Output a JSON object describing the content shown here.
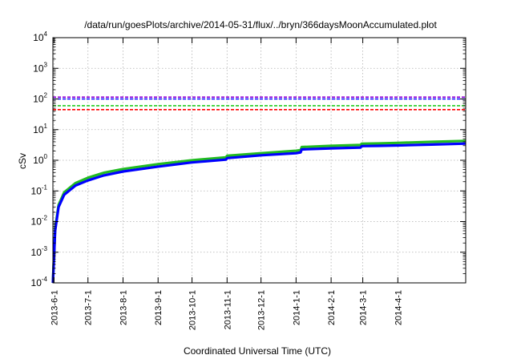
{
  "chart_data": {
    "type": "line",
    "title": "/data/run/goesPlots/archive/2014-05-31/flux/../bryn/366daysMoonAccumulated.plot",
    "xlabel": "Coordinated Universal Time (UTC)",
    "ylabel": "cSv",
    "yscale": "log",
    "ylim": [
      0.0001,
      10000
    ],
    "yticks": [
      {
        "base": "10",
        "exp": "-4"
      },
      {
        "base": "10",
        "exp": "-3"
      },
      {
        "base": "10",
        "exp": "-2"
      },
      {
        "base": "10",
        "exp": "-1"
      },
      {
        "base": "10",
        "exp": "0"
      },
      {
        "base": "10",
        "exp": "1"
      },
      {
        "base": "10",
        "exp": "2"
      },
      {
        "base": "10",
        "exp": "3"
      },
      {
        "base": "10",
        "exp": "4"
      }
    ],
    "xlim": [
      "2013-05-31",
      "2014-05-31"
    ],
    "xticks": [
      "2013-6-1",
      "2013-7-1",
      "2013-8-1",
      "2013-9-1",
      "2013-10-1",
      "2013-11-1",
      "2013-12-1",
      "2014-1-1",
      "2014-2-1",
      "2014-3-1",
      "2014-4-1"
    ],
    "grid": true,
    "reference_lines": [
      {
        "y": 115,
        "color": "#9400d3",
        "style": "dashed"
      },
      {
        "y": 100,
        "color": "#0000ff",
        "style": "dashed"
      },
      {
        "y": 60,
        "color": "#22cc22",
        "style": "dashed"
      },
      {
        "y": 45,
        "color": "#ff0000",
        "style": "dashed"
      }
    ],
    "series": [
      {
        "color": "#22bb22",
        "x": [
          "2013-05-31",
          "2013-06-02",
          "2013-06-05",
          "2013-06-10",
          "2013-06-20",
          "2013-07-01",
          "2013-07-15",
          "2013-08-01",
          "2013-09-01",
          "2013-10-01",
          "2013-10-31",
          "2013-11-01",
          "2013-12-01",
          "2014-01-01",
          "2014-01-05",
          "2014-01-06",
          "2014-02-01",
          "2014-02-27",
          "2014-02-28",
          "2014-03-15",
          "2014-04-01",
          "2014-05-01",
          "2014-05-31"
        ],
        "y": [
          0.0001,
          0.006,
          0.035,
          0.09,
          0.18,
          0.27,
          0.39,
          0.52,
          0.75,
          1.0,
          1.25,
          1.4,
          1.7,
          2.05,
          2.15,
          2.7,
          2.95,
          3.15,
          3.45,
          3.55,
          3.7,
          4.0,
          4.3
        ]
      },
      {
        "color": "#0000ff",
        "x": [
          "2013-05-31",
          "2013-06-02",
          "2013-06-05",
          "2013-06-10",
          "2013-06-20",
          "2013-07-01",
          "2013-07-15",
          "2013-08-01",
          "2013-09-01",
          "2013-10-01",
          "2013-10-31",
          "2013-11-01",
          "2013-12-01",
          "2014-01-01",
          "2014-01-05",
          "2014-01-06",
          "2014-02-01",
          "2014-02-27",
          "2014-02-28",
          "2014-03-15",
          "2014-04-01",
          "2014-05-01",
          "2014-05-31"
        ],
        "y": [
          0.0001,
          0.005,
          0.03,
          0.075,
          0.15,
          0.22,
          0.32,
          0.43,
          0.62,
          0.85,
          1.05,
          1.18,
          1.45,
          1.7,
          1.8,
          2.25,
          2.45,
          2.6,
          2.9,
          2.95,
          3.05,
          3.25,
          3.5
        ]
      }
    ]
  }
}
